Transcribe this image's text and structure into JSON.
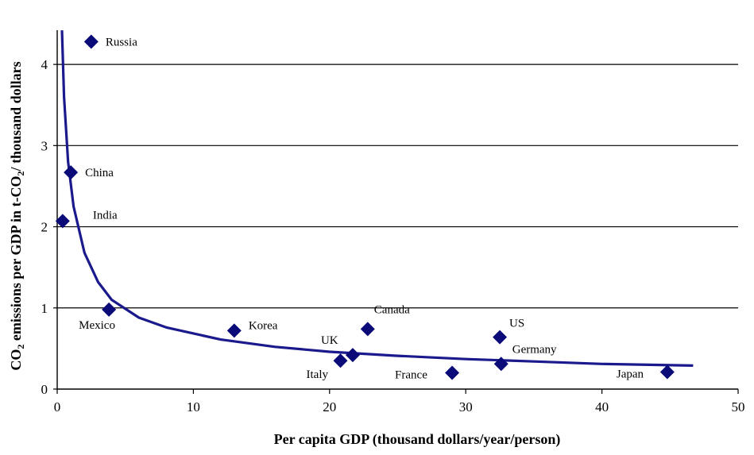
{
  "chart_data": {
    "type": "scatter",
    "xlabel": "Per capita GDP (thousand dollars/year/person)",
    "ylabel": {
      "parts": [
        {
          "text": "CO",
          "sub": false
        },
        {
          "text": "2",
          "sub": true
        },
        {
          "text": " emissions  per GDP in t-CO",
          "sub": false
        },
        {
          "text": "2",
          "sub": true
        },
        {
          "text": "/ thousand  dollars",
          "sub": false
        }
      ]
    },
    "xlim": [
      0,
      50
    ],
    "ylim": [
      0,
      4.5
    ],
    "xticks": [
      0,
      10,
      20,
      30,
      40,
      50
    ],
    "yticks": [
      0,
      1,
      2,
      3,
      4
    ],
    "grid": "horizontal",
    "marker_color": "#0a0a78",
    "curve_color": "#1a1a8c",
    "points": [
      {
        "name": "Russia",
        "x": 2.5,
        "y": 4.28
      },
      {
        "name": "China",
        "x": 1.0,
        "y": 2.67
      },
      {
        "name": "India",
        "x": 0.4,
        "y": 2.07
      },
      {
        "name": "Mexico",
        "x": 3.8,
        "y": 0.98
      },
      {
        "name": "Korea",
        "x": 13.0,
        "y": 0.72
      },
      {
        "name": "Canada",
        "x": 22.8,
        "y": 0.74
      },
      {
        "name": "UK",
        "x": 21.7,
        "y": 0.42
      },
      {
        "name": "Italy",
        "x": 20.8,
        "y": 0.35
      },
      {
        "name": "France",
        "x": 29.0,
        "y": 0.2
      },
      {
        "name": "US",
        "x": 32.5,
        "y": 0.64
      },
      {
        "name": "Germany",
        "x": 32.6,
        "y": 0.31
      },
      {
        "name": "Japan",
        "x": 44.8,
        "y": 0.21
      }
    ],
    "trend_curve": {
      "x": [
        0.35,
        0.5,
        0.8,
        1.2,
        2,
        3,
        4,
        6,
        8,
        12,
        16,
        20,
        25,
        30,
        35,
        40,
        46.7
      ],
      "y": [
        4.42,
        3.6,
        2.8,
        2.25,
        1.68,
        1.32,
        1.1,
        0.88,
        0.76,
        0.61,
        0.52,
        0.46,
        0.41,
        0.37,
        0.34,
        0.31,
        0.29
      ]
    }
  }
}
